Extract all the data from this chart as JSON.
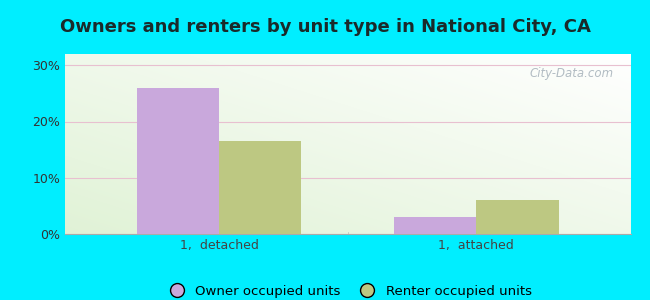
{
  "title": "Owners and renters by unit type in National City, CA",
  "categories": [
    "1,  detached",
    "1,  attached"
  ],
  "owner_values": [
    26.0,
    3.0
  ],
  "renter_values": [
    16.5,
    6.0
  ],
  "owner_color": "#c9a8dc",
  "renter_color": "#bdc882",
  "yticks": [
    0,
    10,
    20,
    30
  ],
  "ylim": [
    0,
    32
  ],
  "background_outer": "#00eeff",
  "bar_width": 0.32,
  "legend_owner": "Owner occupied units",
  "legend_renter": "Renter occupied units",
  "watermark": "City-Data.com",
  "title_fontsize": 13,
  "axis_fontsize": 9,
  "title_color": "#1a2a2a",
  "grid_color": "#e8c0d0"
}
